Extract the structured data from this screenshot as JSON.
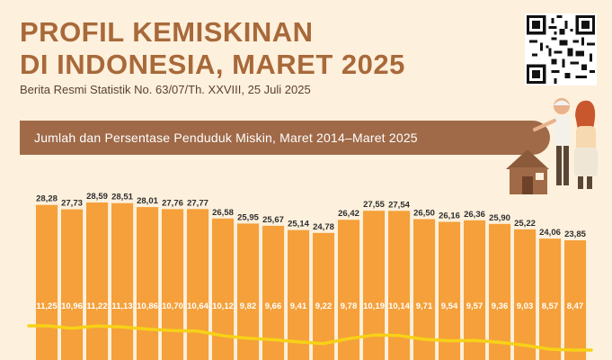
{
  "header": {
    "title_line1": "PROFIL KEMISKINAN",
    "title_line2": "DI INDONESIA, MARET 2025",
    "subtitle": "Berita Resmi Statistik No. 63/07/Th. XXVIII, 25 Juli 2025"
  },
  "banner": {
    "text": "Jumlah dan Persentase Penduduk Miskin, Maret 2014–Maret 2025"
  },
  "colors": {
    "background": "#fdf0dc",
    "title": "#a8693a",
    "banner": "#a06a48",
    "bar": "#f5a03a",
    "trend_line": "#f7d117"
  },
  "icons": {
    "qr": "qr-code-icon",
    "illustration": "elderly-couple-house-illustration"
  },
  "chart_data": {
    "type": "bar",
    "series": [
      {
        "values": [
          28.28,
          27.73,
          28.59,
          28.51,
          28.01,
          27.76,
          27.77,
          26.58,
          25.95,
          25.67,
          25.14,
          24.78,
          26.42,
          27.55,
          27.54,
          26.5,
          26.16,
          26.36,
          25.9,
          25.22,
          24.06,
          23.85
        ]
      },
      {
        "values": [
          11.25,
          10.96,
          11.22,
          11.13,
          10.86,
          10.7,
          10.64,
          10.12,
          9.82,
          9.66,
          9.41,
          9.22,
          9.78,
          10.19,
          10.14,
          9.71,
          9.54,
          9.57,
          9.36,
          9.03,
          8.57,
          8.47
        ]
      }
    ],
    "labels_top": [
      "28,28",
      "27,73",
      "28,59",
      "28,51",
      "28,01",
      "27,76",
      "27,77",
      "26,58",
      "25,95",
      "25,67",
      "25,14",
      "24,78",
      "26,42",
      "27,55",
      "27,54",
      "26,50",
      "26,16",
      "26,36",
      "25,90",
      "25,22",
      "24,06",
      "23,85"
    ],
    "labels_pct": [
      "11,25",
      "10,96",
      "11,22",
      "11,13",
      "10,86",
      "10,70",
      "10,64",
      "10,12",
      "9,82",
      "9,66",
      "9,41",
      "9,22",
      "9,78",
      "10,19",
      "10,14",
      "9,71",
      "9,54",
      "9,57",
      "9,36",
      "9,03",
      "8,57",
      "8,47"
    ]
  }
}
